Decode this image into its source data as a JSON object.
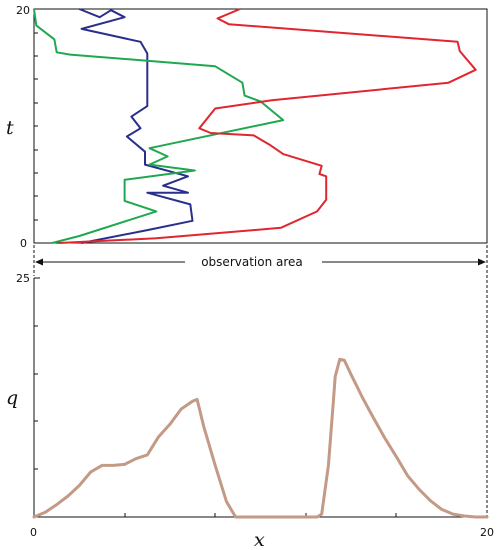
{
  "top_panel": {
    "y_axis_label": "t",
    "y_ticks": [
      "0",
      "20"
    ],
    "x_range": [
      0,
      20
    ],
    "t_range": [
      0,
      20
    ],
    "trajectories": [
      {
        "color": "#2a2f8c",
        "points": [
          [
            2,
            20
          ],
          [
            2.9,
            19.3
          ],
          [
            3.4,
            19.9
          ],
          [
            4,
            19.3
          ],
          [
            2.1,
            18.3
          ],
          [
            4.7,
            17.2
          ],
          [
            5,
            16.2
          ],
          [
            5,
            11.7
          ],
          [
            4.3,
            10.8
          ],
          [
            4.7,
            9.8
          ],
          [
            4.1,
            9.1
          ],
          [
            4.9,
            7.8
          ],
          [
            4.9,
            6.7
          ],
          [
            6.8,
            5.7
          ],
          [
            5.7,
            4.9
          ],
          [
            6.8,
            4.3
          ],
          [
            5,
            4.3
          ],
          [
            6.9,
            3.3
          ],
          [
            7,
            1.9
          ],
          [
            5,
            1.1
          ],
          [
            2.1,
            0
          ]
        ]
      },
      {
        "color": "#1fa84f",
        "points": [
          [
            0,
            20
          ],
          [
            0.1,
            18.6
          ],
          [
            0.9,
            17.4
          ],
          [
            1,
            16.3
          ],
          [
            1.6,
            16.1
          ],
          [
            8,
            15.1
          ],
          [
            9.2,
            13.7
          ],
          [
            9.3,
            12.6
          ],
          [
            10,
            12.1
          ],
          [
            11,
            10.5
          ],
          [
            5.1,
            8.1
          ],
          [
            5.9,
            7.4
          ],
          [
            5.1,
            6.7
          ],
          [
            7.1,
            6.2
          ],
          [
            4,
            5.4
          ],
          [
            4,
            3.6
          ],
          [
            5.4,
            2.7
          ],
          [
            2,
            0.6
          ],
          [
            0.8,
            0
          ]
        ]
      },
      {
        "color": "#e0262e",
        "points": [
          [
            9.1,
            20
          ],
          [
            8.1,
            19.2
          ],
          [
            8.6,
            18.7
          ],
          [
            18.7,
            17.2
          ],
          [
            18.8,
            16.4
          ],
          [
            19.5,
            14.8
          ],
          [
            18.3,
            13.7
          ],
          [
            10.5,
            12.2
          ],
          [
            8,
            11.5
          ],
          [
            7.3,
            9.8
          ],
          [
            7.8,
            9.4
          ],
          [
            9.7,
            9.2
          ],
          [
            10.4,
            8.4
          ],
          [
            11,
            7.6
          ],
          [
            12.7,
            6.6
          ],
          [
            12.6,
            5.9
          ],
          [
            12.9,
            5.7
          ],
          [
            12.9,
            3.7
          ],
          [
            12.5,
            2.7
          ],
          [
            10.9,
            1.3
          ],
          [
            5.4,
            0.4
          ],
          [
            1.1,
            0
          ]
        ]
      }
    ]
  },
  "observation": {
    "label": "observation area"
  },
  "bottom_panel": {
    "y_axis_label": "q",
    "x_axis_label": "x",
    "y_ticks": [
      "25"
    ],
    "x_ticks": [
      "0",
      "20"
    ],
    "x_range": [
      0,
      20
    ],
    "q_range": [
      0,
      25
    ],
    "curve_color": "#c29a86",
    "points": [
      [
        0,
        0
      ],
      [
        0.5,
        0.5
      ],
      [
        1,
        1.3
      ],
      [
        1.5,
        2.2
      ],
      [
        2,
        3.3
      ],
      [
        2.5,
        4.7
      ],
      [
        3,
        5.4
      ],
      [
        3.5,
        5.4
      ],
      [
        4,
        5.5
      ],
      [
        4.5,
        6.1
      ],
      [
        5,
        6.5
      ],
      [
        5.5,
        8.4
      ],
      [
        6,
        9.7
      ],
      [
        6.5,
        11.3
      ],
      [
        7,
        12.1
      ],
      [
        7.2,
        12.3
      ],
      [
        7.5,
        9.4
      ],
      [
        8,
        5.4
      ],
      [
        8.5,
        1.6
      ],
      [
        8.9,
        0
      ],
      [
        9.5,
        0
      ],
      [
        10,
        0
      ],
      [
        10.5,
        0
      ],
      [
        11,
        0
      ],
      [
        11.5,
        0
      ],
      [
        12,
        0
      ],
      [
        12.5,
        0
      ],
      [
        12.7,
        0.3
      ],
      [
        13,
        5.4
      ],
      [
        13.2,
        11.6
      ],
      [
        13.3,
        14.7
      ],
      [
        13.5,
        16.5
      ],
      [
        13.7,
        16.4
      ],
      [
        14,
        14.9
      ],
      [
        14.5,
        12.5
      ],
      [
        15,
        10.3
      ],
      [
        15.5,
        8.2
      ],
      [
        16,
        6.3
      ],
      [
        16.5,
        4.3
      ],
      [
        17,
        2.9
      ],
      [
        17.5,
        1.7
      ],
      [
        18,
        0.8
      ],
      [
        18.5,
        0.3
      ],
      [
        19,
        0.1
      ],
      [
        19.5,
        0
      ],
      [
        20,
        0
      ]
    ]
  }
}
